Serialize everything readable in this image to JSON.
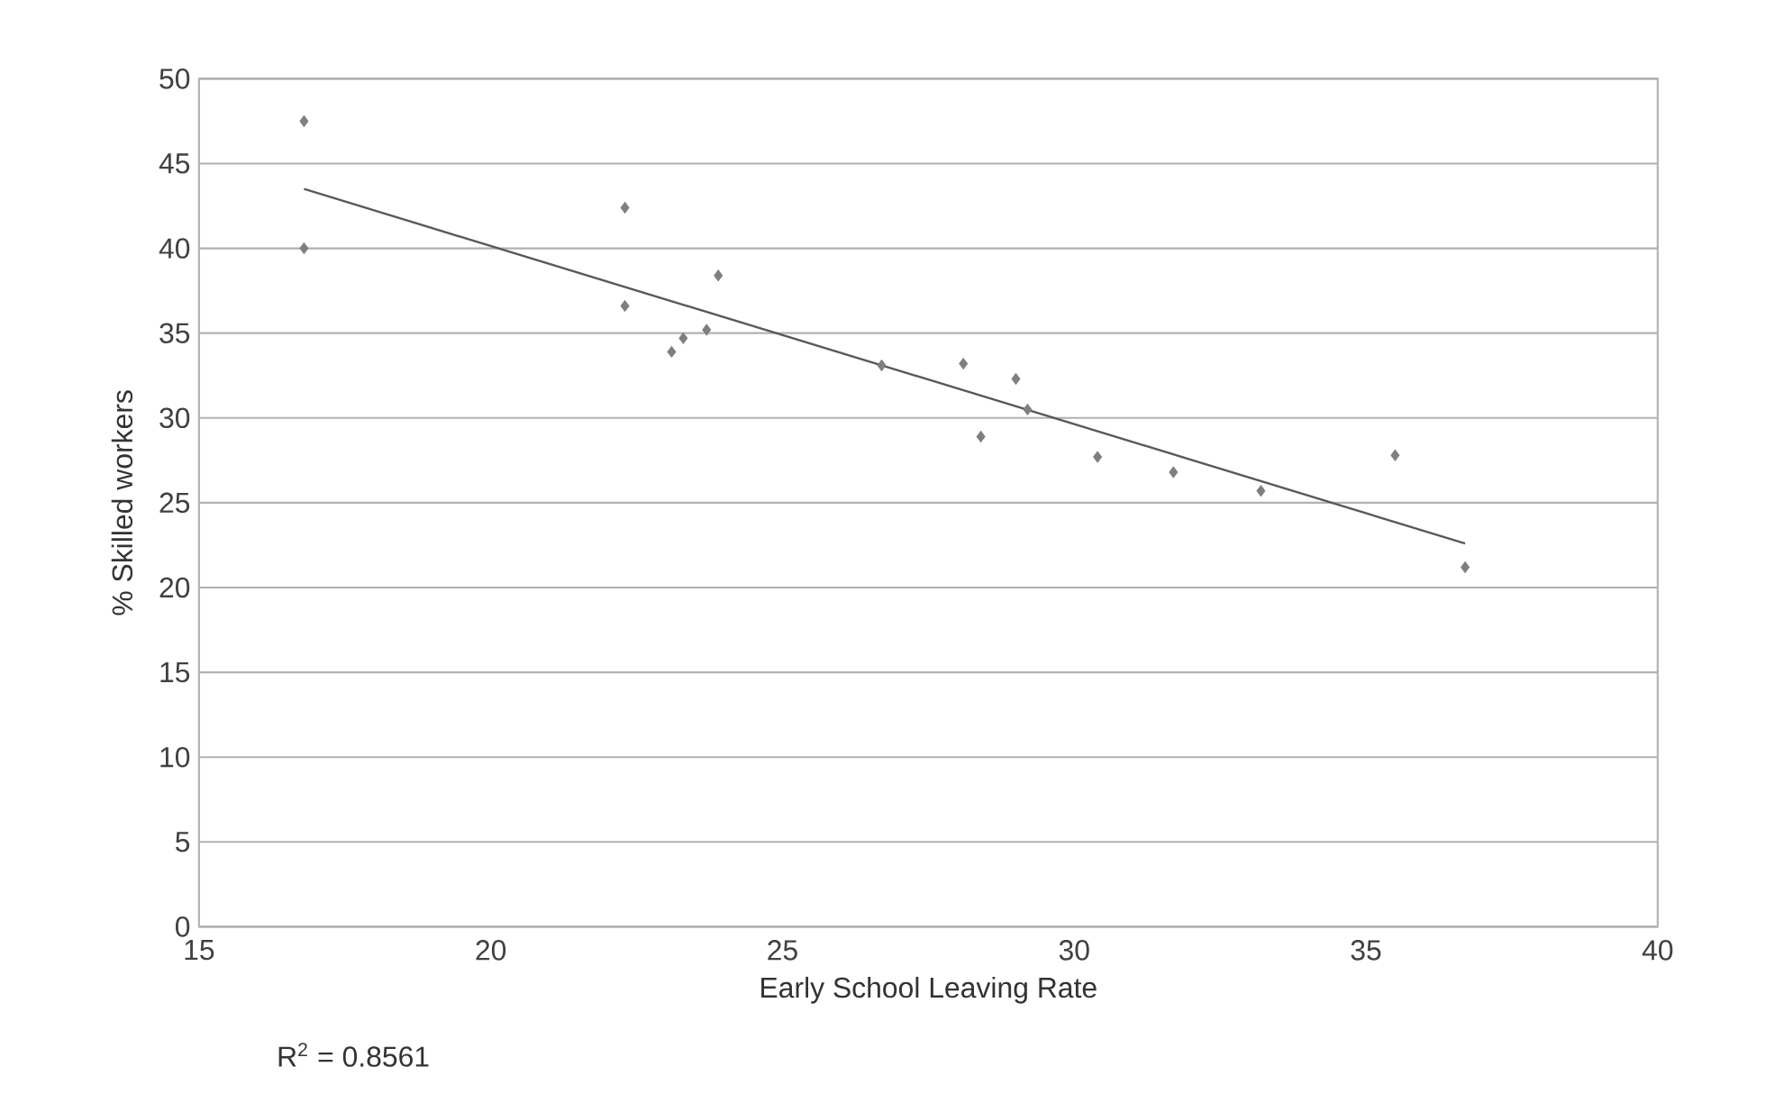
{
  "chart_data": {
    "type": "scatter",
    "xlabel": "Early School Leaving Rate",
    "ylabel": "% Skilled workers",
    "annotations": [
      "R$^{2}$ = 0.8561"
    ],
    "xlim": [
      15,
      40
    ],
    "xticks": [
      15,
      20,
      25,
      30,
      35,
      40
    ],
    "ylim": [
      0,
      50
    ],
    "yticks": [
      0,
      5,
      10,
      15,
      20,
      25,
      30,
      35,
      40,
      45,
      50
    ],
    "grid": "y",
    "series": [
      {
        "marker": "diamond",
        "color": "#7f7f7f",
        "x": [
          16.8,
          16.8,
          22.3,
          22.3,
          23.9,
          23.7,
          23.3,
          23.1,
          26.7,
          28.1,
          29.0,
          29.2,
          28.4,
          30.4,
          31.7,
          33.2,
          35.5,
          36.7
        ],
        "values": [
          47.5,
          40.0,
          42.4,
          36.6,
          38.4,
          35.2,
          34.7,
          33.9,
          33.1,
          33.2,
          32.3,
          30.5,
          28.9,
          27.7,
          26.8,
          25.7,
          27.8,
          21.2
        ]
      },
      {
        "type": "line",
        "marker": "none",
        "color": "#595959",
        "x": [
          16.8,
          36.7
        ],
        "values": [
          43.5,
          22.6
        ]
      }
    ]
  }
}
